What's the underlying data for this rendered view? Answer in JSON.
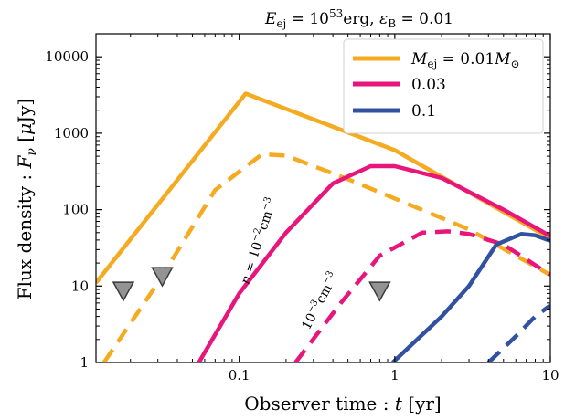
{
  "chart_data": {
    "type": "line",
    "title": "E_ej = 10^53 erg, ε_B = 0.01",
    "title_parts": {
      "e_sym": "E",
      "e_sub": "ej",
      "eq1": " = 10",
      "e_exp": "53",
      "e_unit": "erg, ",
      "eps_sym": "ε",
      "eps_sub": "B",
      "eq2": " = 0.01"
    },
    "xlabel": "Observer time : t [yr]",
    "xlabel_parts": {
      "text": "Observer time : ",
      "sym": "t",
      "unit": " [yr]"
    },
    "ylabel": "Flux density : F_ν [μJy]",
    "ylabel_parts": {
      "text": "Flux density : ",
      "sym": "F",
      "sub": "ν",
      "unit_open": " [",
      "unit_mu": "μ",
      "unit_close": "Jy]"
    },
    "x_scale": "log",
    "y_scale": "log",
    "xlim": [
      0.012,
      10
    ],
    "ylim": [
      1,
      20000
    ],
    "x_ticks": [
      {
        "value": 0.1,
        "label": "0.1"
      },
      {
        "value": 1,
        "label": "1"
      },
      {
        "value": 10,
        "label": "10"
      }
    ],
    "y_ticks": [
      {
        "value": 1,
        "label": "1"
      },
      {
        "value": 10,
        "label": "10"
      },
      {
        "value": 100,
        "label": "100"
      },
      {
        "value": 1000,
        "label": "1000"
      },
      {
        "value": 10000,
        "label": "10000"
      }
    ],
    "grid": false,
    "legend": {
      "placement": "top-right",
      "entries": [
        {
          "label_sym": "M",
          "label_sub": "ej",
          "label_rest": " = 0.01",
          "label_sym2": "M",
          "label_sub2": "⊙",
          "color": "#f5ab21"
        },
        {
          "label": "0.03",
          "color": "#e8157a"
        },
        {
          "label": "0.1",
          "color": "#3252a1"
        }
      ]
    },
    "series": [
      {
        "color": "#f5ab21",
        "dashed": false,
        "points": [
          [
            0.012,
            11
          ],
          [
            0.11,
            3300
          ],
          [
            1,
            600
          ],
          [
            10,
            42
          ]
        ]
      },
      {
        "color": "#f5ab21",
        "dashed": true,
        "points": [
          [
            0.0135,
            1
          ],
          [
            0.03,
            11
          ],
          [
            0.07,
            180
          ],
          [
            0.14,
            530
          ],
          [
            0.2,
            510
          ],
          [
            0.5,
            250
          ],
          [
            1,
            140
          ],
          [
            3,
            55
          ],
          [
            10,
            14
          ]
        ]
      },
      {
        "color": "#e8157a",
        "dashed": false,
        "points": [
          [
            0.055,
            1
          ],
          [
            0.1,
            8
          ],
          [
            0.2,
            50
          ],
          [
            0.4,
            220
          ],
          [
            0.7,
            370
          ],
          [
            1,
            370
          ],
          [
            2,
            260
          ],
          [
            5,
            100
          ],
          [
            10,
            45
          ]
        ]
      },
      {
        "color": "#e8157a",
        "dashed": true,
        "points": [
          [
            0.23,
            1
          ],
          [
            0.45,
            6
          ],
          [
            0.8,
            25
          ],
          [
            1.5,
            50
          ],
          [
            2.2,
            52
          ],
          [
            3,
            48
          ],
          [
            5,
            35
          ],
          [
            10,
            14
          ]
        ]
      },
      {
        "color": "#3252a1",
        "dashed": false,
        "points": [
          [
            0.97,
            1
          ],
          [
            2,
            4
          ],
          [
            3,
            10
          ],
          [
            4.5,
            35
          ],
          [
            6.5,
            48
          ],
          [
            8,
            46
          ],
          [
            10,
            39
          ]
        ]
      },
      {
        "color": "#3252a1",
        "dashed": true,
        "points": [
          [
            4,
            1
          ],
          [
            6,
            2.2
          ],
          [
            8,
            4
          ],
          [
            10,
            5.6
          ]
        ]
      }
    ],
    "upper_limits": [
      {
        "x": 0.018,
        "y": 9,
        "color": "#939393"
      },
      {
        "x": 0.032,
        "y": 14,
        "color": "#939393"
      },
      {
        "x": 0.8,
        "y": 9,
        "color": "#939393"
      }
    ],
    "annotations": [
      {
        "id": "density-1",
        "parts": {
          "n": "n",
          "eq": " = 10",
          "exp": "−2",
          "unit": "cm",
          "unit_exp": "−3"
        }
      },
      {
        "id": "density-2",
        "parts": {
          "base": "10",
          "exp": "−3",
          "unit": "cm",
          "unit_exp": "−3"
        }
      }
    ]
  }
}
